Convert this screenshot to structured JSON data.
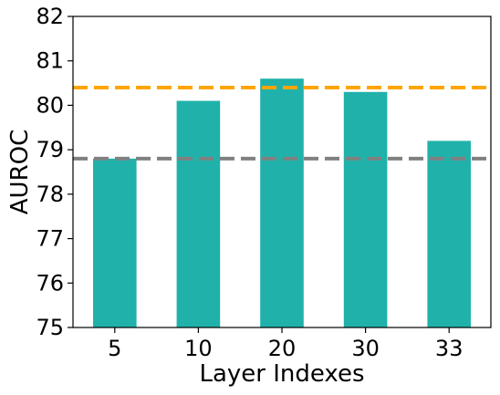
{
  "chart_data": {
    "type": "bar",
    "title": "",
    "xlabel": "Layer Indexes",
    "ylabel": "AUROC",
    "categories": [
      "5",
      "10",
      "20",
      "30",
      "33"
    ],
    "values": [
      78.8,
      80.1,
      80.6,
      80.3,
      79.2
    ],
    "ylim": [
      75,
      82
    ],
    "yticks": [
      "75",
      "76",
      "77",
      "78",
      "79",
      "80",
      "81",
      "82"
    ],
    "grid": false,
    "bar_color": "#20b2aa",
    "reference_lines": [
      {
        "value": 80.4,
        "color": "#ffa500",
        "style": "dashed"
      },
      {
        "value": 78.8,
        "color": "#808080",
        "style": "dashed"
      }
    ]
  }
}
